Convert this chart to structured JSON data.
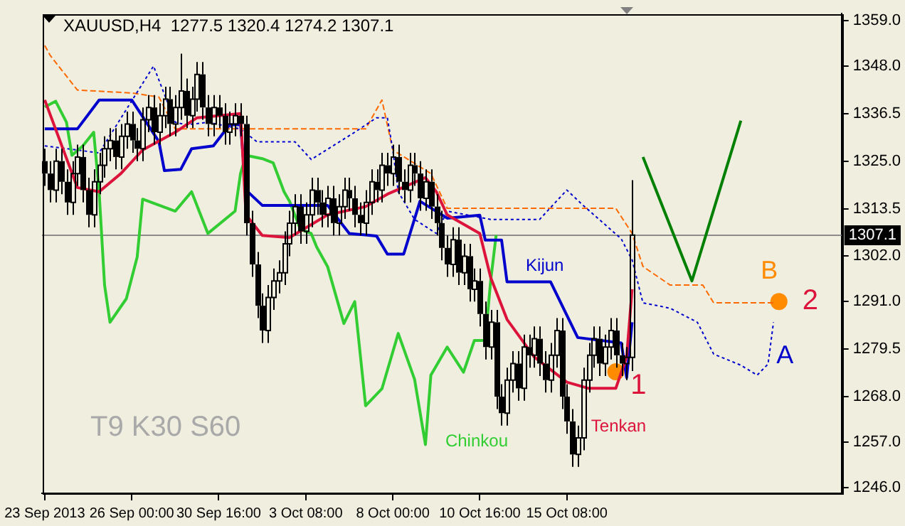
{
  "chart_data": {
    "type": "candlestick",
    "title": "XAUUSD,H4  1277.5 1320.4 1274.2 1307.1",
    "categories": [
      "23 Sep 2013",
      null,
      null,
      null,
      null,
      null,
      null,
      null,
      null,
      null,
      null,
      null,
      null,
      null,
      null,
      null,
      "26 Sep 00:00",
      null,
      null,
      null,
      null,
      null,
      null,
      null,
      null,
      null,
      null,
      null,
      null,
      null,
      null,
      null,
      "30 Sep 16:00",
      null,
      null,
      null,
      null,
      null,
      null,
      null,
      null,
      null,
      null,
      null,
      null,
      null,
      null,
      null,
      "3 Oct 08:00",
      null,
      null,
      null,
      null,
      null,
      null,
      null,
      null,
      null,
      null,
      null,
      null,
      null,
      null,
      null,
      "8 Oct 00:00",
      null,
      null,
      null,
      null,
      null,
      null,
      null,
      null,
      null,
      null,
      null,
      null,
      null,
      null,
      null,
      "10 Oct 16:00",
      null,
      null,
      null,
      null,
      null,
      null,
      null,
      null,
      null,
      null,
      null,
      null,
      null,
      null,
      null,
      "15 Oct 08:00",
      null,
      null,
      null,
      null,
      null,
      null,
      null,
      null,
      null,
      null,
      null,
      null,
      null,
      null,
      null,
      null,
      null,
      null,
      null,
      null,
      null,
      null,
      null,
      null,
      null,
      null,
      null,
      null,
      null,
      null,
      null,
      null,
      null,
      null,
      null,
      null,
      null,
      null,
      null,
      null,
      null,
      null,
      null,
      null,
      null,
      null,
      null,
      null,
      null,
      null
    ],
    "ohlc": [
      [
        1325,
        1328,
        1319,
        1322
      ],
      [
        1322,
        1325,
        1315,
        1318
      ],
      [
        1318,
        1328,
        1315,
        1325
      ],
      [
        1325,
        1328,
        1317,
        1320
      ],
      [
        1320,
        1323,
        1312,
        1315
      ],
      [
        1315,
        1325,
        1312,
        1322
      ],
      [
        1322,
        1329,
        1319,
        1326
      ],
      [
        1326,
        1329,
        1315,
        1318
      ],
      [
        1318,
        1321,
        1309,
        1312
      ],
      [
        1312,
        1323,
        1309,
        1320
      ],
      [
        1320,
        1327,
        1317,
        1324
      ],
      [
        1324,
        1331,
        1321,
        1328
      ],
      [
        1328,
        1333,
        1325,
        1330
      ],
      [
        1330,
        1333,
        1323,
        1326
      ],
      [
        1326,
        1334,
        1323,
        1331
      ],
      [
        1331,
        1337,
        1328,
        1334
      ],
      [
        1334,
        1337,
        1327,
        1330
      ],
      [
        1330,
        1333,
        1325,
        1328
      ],
      [
        1328,
        1338,
        1325,
        1335
      ],
      [
        1335,
        1341,
        1332,
        1338
      ],
      [
        1338,
        1341,
        1329,
        1332
      ],
      [
        1332,
        1339,
        1329,
        1336
      ],
      [
        1336,
        1343,
        1333,
        1340
      ],
      [
        1340,
        1343,
        1331,
        1334
      ],
      [
        1334,
        1341,
        1331,
        1338
      ],
      [
        1338,
        1351,
        1335,
        1342
      ],
      [
        1342,
        1345,
        1333,
        1336
      ],
      [
        1336,
        1343,
        1333,
        1340
      ],
      [
        1340,
        1349,
        1337,
        1346
      ],
      [
        1346,
        1349,
        1335,
        1338
      ],
      [
        1338,
        1341,
        1331,
        1334
      ],
      [
        1334,
        1341,
        1331,
        1338
      ],
      [
        1338,
        1341,
        1333,
        1336
      ],
      [
        1336,
        1339,
        1329,
        1332
      ],
      [
        1332,
        1337,
        1329,
        1334
      ],
      [
        1334,
        1339,
        1331,
        1336
      ],
      [
        1336,
        1339,
        1331,
        1334
      ],
      [
        1334,
        1336,
        1307,
        1310
      ],
      [
        1310,
        1313,
        1297,
        1300
      ],
      [
        1300,
        1303,
        1287,
        1290
      ],
      [
        1290,
        1293,
        1281,
        1284
      ],
      [
        1284,
        1295,
        1281,
        1292
      ],
      [
        1292,
        1299,
        1289,
        1296
      ],
      [
        1296,
        1301,
        1293,
        1298
      ],
      [
        1298,
        1308,
        1295,
        1305
      ],
      [
        1305,
        1313,
        1302,
        1310
      ],
      [
        1310,
        1317,
        1307,
        1314
      ],
      [
        1314,
        1317,
        1305,
        1308
      ],
      [
        1308,
        1315,
        1305,
        1312
      ],
      [
        1312,
        1321,
        1309,
        1318
      ],
      [
        1318,
        1321,
        1312,
        1315
      ],
      [
        1315,
        1318,
        1309,
        1312
      ],
      [
        1312,
        1319,
        1309,
        1316
      ],
      [
        1316,
        1319,
        1307,
        1310
      ],
      [
        1310,
        1317,
        1307,
        1314
      ],
      [
        1314,
        1321,
        1311,
        1318
      ],
      [
        1318,
        1321,
        1313,
        1316
      ],
      [
        1316,
        1319,
        1309,
        1312
      ],
      [
        1312,
        1315,
        1307,
        1310
      ],
      [
        1310,
        1318,
        1307,
        1315
      ],
      [
        1315,
        1323,
        1312,
        1320
      ],
      [
        1320,
        1323,
        1315,
        1318
      ],
      [
        1318,
        1327,
        1315,
        1324
      ],
      [
        1324,
        1327,
        1319,
        1322
      ],
      [
        1322,
        1329,
        1319,
        1326
      ],
      [
        1326,
        1329,
        1317,
        1320
      ],
      [
        1320,
        1323,
        1315,
        1318
      ],
      [
        1318,
        1327,
        1315,
        1324
      ],
      [
        1324,
        1327,
        1319,
        1322
      ],
      [
        1322,
        1325,
        1313,
        1316
      ],
      [
        1316,
        1323,
        1313,
        1320
      ],
      [
        1320,
        1323,
        1311,
        1314
      ],
      [
        1314,
        1317,
        1307,
        1310
      ],
      [
        1310,
        1313,
        1301,
        1304
      ],
      [
        1304,
        1307,
        1297,
        1300
      ],
      [
        1300,
        1309,
        1297,
        1306
      ],
      [
        1306,
        1309,
        1295,
        1298
      ],
      [
        1298,
        1305,
        1295,
        1302
      ],
      [
        1302,
        1305,
        1291,
        1294
      ],
      [
        1294,
        1299,
        1291,
        1296
      ],
      [
        1296,
        1299,
        1285,
        1288
      ],
      [
        1288,
        1291,
        1277,
        1280
      ],
      [
        1280,
        1289,
        1277,
        1286
      ],
      [
        1286,
        1289,
        1265,
        1268
      ],
      [
        1268,
        1271,
        1261,
        1264
      ],
      [
        1264,
        1275,
        1261,
        1272
      ],
      [
        1272,
        1279,
        1269,
        1276
      ],
      [
        1276,
        1279,
        1267,
        1270
      ],
      [
        1270,
        1283,
        1267,
        1280
      ],
      [
        1280,
        1283,
        1275,
        1278
      ],
      [
        1278,
        1285,
        1275,
        1282
      ],
      [
        1282,
        1285,
        1273,
        1276
      ],
      [
        1276,
        1279,
        1269,
        1272
      ],
      [
        1272,
        1281,
        1269,
        1278
      ],
      [
        1278,
        1287,
        1275,
        1284
      ],
      [
        1284,
        1287,
        1265,
        1268
      ],
      [
        1268,
        1271,
        1259,
        1262
      ],
      [
        1262,
        1265,
        1251,
        1254
      ],
      [
        1254,
        1261,
        1251,
        1258
      ],
      [
        1258,
        1275,
        1255,
        1272
      ],
      [
        1272,
        1281,
        1269,
        1278
      ],
      [
        1278,
        1285,
        1275,
        1282
      ],
      [
        1282,
        1285,
        1273,
        1276
      ],
      [
        1276,
        1283,
        1273,
        1280
      ],
      [
        1280,
        1287,
        1277,
        1284
      ],
      [
        1284,
        1287,
        1275,
        1278
      ],
      [
        1278,
        1281,
        1273,
        1276
      ],
      [
        1276,
        1280,
        1272,
        1277.5
      ],
      [
        1277.5,
        1320.4,
        1274.2,
        1307.1
      ],
      null,
      null,
      null,
      null,
      null,
      null,
      null,
      null,
      null,
      null,
      null,
      null,
      null,
      null,
      null,
      null,
      null,
      null,
      null,
      null,
      null,
      null,
      null,
      null,
      null,
      null,
      null,
      null,
      null,
      null,
      null,
      null,
      null,
      null,
      null,
      null,
      null,
      null
    ],
    "series": [
      {
        "name": "Tenkan",
        "type": "line",
        "color": "#dc143c",
        "line_style": "solid",
        "values": [
          1339.8,
          null,
          null,
          null,
          null,
          null,
          1318.6,
          null,
          null,
          null,
          1317.6,
          null,
          null,
          null,
          1322,
          null,
          null,
          null,
          1327.7,
          null,
          null,
          null,
          null,
          null,
          1332,
          null,
          null,
          null,
          1335.5,
          null,
          null,
          null,
          null,
          null,
          null,
          null,
          1336.5,
          1312,
          null,
          null,
          1307,
          null,
          null,
          null,
          null,
          1306.5,
          null,
          null,
          null,
          null,
          null,
          null,
          1312,
          null,
          null,
          null,
          null,
          null,
          null,
          1314,
          null,
          null,
          null,
          1317,
          null,
          null,
          null,
          null,
          null,
          null,
          1321,
          null,
          1317.6,
          null,
          1312,
          null,
          null,
          null,
          null,
          null,
          1307.5,
          null,
          1296.8,
          null,
          null,
          1286.7,
          null,
          null,
          null,
          null,
          1277.6,
          null,
          null,
          null,
          null,
          null,
          1271.5,
          null,
          null,
          null,
          1270,
          null,
          null,
          null,
          null,
          1270,
          null,
          1277.6,
          1294,
          null,
          null,
          null,
          null,
          null,
          null,
          null,
          null,
          null,
          null,
          null,
          null,
          null,
          null,
          null,
          null,
          null,
          null,
          null,
          null,
          null,
          null,
          null,
          null,
          null,
          null,
          null,
          null,
          null,
          null,
          null,
          null,
          null,
          null,
          null,
          null,
          null,
          null
        ]
      },
      {
        "name": "Kijun",
        "type": "line",
        "color": "#0000cd",
        "line_style": "solid",
        "values": [
          1332.8,
          null,
          null,
          null,
          null,
          null,
          1332.8,
          null,
          null,
          null,
          1339.8,
          null,
          null,
          null,
          null,
          null,
          1339.8,
          null,
          null,
          null,
          null,
          1329.7,
          1322.7,
          null,
          null,
          1323,
          null,
          1328,
          null,
          null,
          null,
          1328.7,
          null,
          null,
          1333.8,
          null,
          1333.8,
          1318,
          null,
          null,
          1314.3,
          null,
          null,
          null,
          null,
          null,
          null,
          null,
          null,
          null,
          null,
          null,
          1314.3,
          null,
          null,
          null,
          1307.5,
          null,
          null,
          null,
          null,
          1306.9,
          null,
          1302.5,
          null,
          null,
          1302.5,
          null,
          null,
          1315.3,
          null,
          null,
          null,
          null,
          1311.2,
          null,
          null,
          null,
          null,
          null,
          1311.9,
          1305.9,
          null,
          null,
          1305.9,
          1295.8,
          null,
          null,
          null,
          null,
          null,
          null,
          null,
          1295.8,
          null,
          null,
          null,
          null,
          1282.3,
          null,
          null,
          null,
          null,
          null,
          null,
          null,
          1281,
          1272.6,
          1286,
          null,
          null,
          null,
          null,
          null,
          null,
          null,
          null,
          null,
          null,
          null,
          null,
          null,
          null,
          null,
          null,
          null,
          null,
          null,
          null,
          null,
          null,
          null,
          null,
          null,
          null,
          null,
          null,
          null,
          null,
          null,
          null,
          null,
          null,
          null,
          null,
          null,
          null
        ]
      },
      {
        "name": "Chinkou",
        "type": "line",
        "color": "#32cd32",
        "line_style": "solid",
        "values": [
          1338.1,
          null,
          1339.5,
          null,
          1334.4,
          1326.4,
          null,
          1328.7,
          null,
          1332,
          1317.6,
          1295,
          1286,
          null,
          null,
          1291.7,
          null,
          1301.8,
          1315.8,
          null,
          null,
          null,
          null,
          null,
          1312.9,
          null,
          null,
          1317.6,
          null,
          null,
          1307.5,
          null,
          null,
          null,
          null,
          1312.9,
          1322,
          1326.4,
          null,
          null,
          1325.6,
          null,
          1324.6,
          null,
          1317.6,
          1315.3,
          null,
          1308.5,
          null,
          1307.5,
          1304.2,
          null,
          1299.5,
          null,
          null,
          1285.7,
          null,
          1291,
          null,
          1265.8,
          null,
          null,
          1269.9,
          null,
          null,
          1283.3,
          null,
          null,
          1272.2,
          null,
          1256.4,
          1273.2,
          null,
          null,
          1280,
          null,
          null,
          1273.9,
          null,
          1281.6,
          null,
          1281.6,
          1296.1,
          1307.1,
          null,
          null,
          null,
          null,
          null,
          null,
          null,
          null,
          null,
          null,
          null,
          null,
          null,
          null,
          null,
          null,
          null,
          null,
          null,
          null,
          null,
          null,
          null,
          null,
          null,
          null,
          null,
          null,
          null,
          null,
          null,
          null,
          null,
          null,
          null,
          null,
          null,
          null,
          null,
          null,
          null,
          null,
          null,
          null,
          null,
          null,
          null,
          null,
          null,
          null,
          null,
          null,
          null,
          null,
          null,
          null,
          null,
          null,
          null,
          null,
          null,
          null,
          null
        ]
      },
      {
        "name": "A",
        "type": "line",
        "color": "#0000cd",
        "line_style": "dotted",
        "values": [
          1328.7,
          null,
          null,
          null,
          null,
          null,
          null,
          null,
          null,
          null,
          1327,
          null,
          null,
          null,
          null,
          null,
          null,
          null,
          null,
          null,
          1348,
          null,
          1341.2,
          null,
          1334.4,
          null,
          1333.8,
          null,
          null,
          null,
          1334.4,
          null,
          null,
          null,
          null,
          null,
          1332.8,
          null,
          null,
          1329.7,
          null,
          null,
          null,
          null,
          null,
          null,
          1329.7,
          null,
          null,
          1325.4,
          null,
          null,
          null,
          1328.7,
          null,
          null,
          null,
          1332,
          null,
          null,
          null,
          1335.5,
          null,
          1335.5,
          1327.7,
          1317.6,
          null,
          null,
          1310.9,
          null,
          null,
          null,
          1307.5,
          null,
          1312.9,
          null,
          null,
          null,
          null,
          null,
          null,
          null,
          1310.9,
          null,
          null,
          null,
          null,
          null,
          null,
          null,
          null,
          1310.9,
          null,
          null,
          null,
          null,
          1318,
          null,
          null,
          1314.3,
          null,
          null,
          null,
          null,
          null,
          null,
          1306.2,
          null,
          1301.1,
          null,
          1290.7,
          null,
          null,
          null,
          null,
          1289.4,
          null,
          null,
          null,
          null,
          1286,
          null,
          null,
          1278.3,
          null,
          null,
          null,
          null,
          1275.6,
          null,
          null,
          1273.2,
          null,
          1275.9,
          1286,
          null,
          null,
          null,
          null,
          null,
          null,
          null,
          null,
          null,
          null,
          null,
          null
        ]
      },
      {
        "name": "B",
        "type": "line",
        "color": "#ff6a00",
        "line_style": "dashed",
        "values": [
          1353,
          1350.6,
          null,
          null,
          null,
          null,
          1342.2,
          null,
          null,
          null,
          null,
          null,
          null,
          null,
          null,
          null,
          1341.5,
          null,
          null,
          null,
          null,
          1340.5,
          null,
          null,
          1332.8,
          null,
          null,
          null,
          null,
          null,
          null,
          null,
          null,
          null,
          null,
          null,
          null,
          1332.8,
          null,
          null,
          null,
          null,
          null,
          null,
          null,
          null,
          null,
          null,
          null,
          null,
          null,
          null,
          null,
          null,
          null,
          null,
          null,
          null,
          null,
          1332.8,
          null,
          null,
          1339.8,
          null,
          1327.7,
          null,
          null,
          null,
          null,
          null,
          null,
          1322,
          null,
          null,
          1313.6,
          null,
          null,
          null,
          null,
          null,
          null,
          null,
          null,
          null,
          null,
          null,
          null,
          null,
          null,
          null,
          null,
          null,
          null,
          null,
          null,
          null,
          null,
          null,
          null,
          null,
          null,
          null,
          null,
          null,
          null,
          1313.6,
          null,
          null,
          1307.5,
          null,
          1299.5,
          null,
          null,
          null,
          null,
          1295,
          null,
          null,
          null,
          null,
          null,
          1295,
          null,
          1290.7,
          null,
          null,
          null,
          null,
          null,
          null,
          null,
          null,
          null,
          null,
          1290.7,
          null,
          null,
          null,
          null,
          null,
          null,
          null,
          null,
          null,
          null,
          null,
          null
        ]
      },
      {
        "type": "line",
        "color": "#008000",
        "line_style": "solid",
        "values": [
          null,
          null,
          null,
          null,
          null,
          null,
          null,
          null,
          null,
          null,
          null,
          null,
          null,
          null,
          null,
          null,
          null,
          null,
          null,
          null,
          null,
          null,
          null,
          null,
          null,
          null,
          null,
          null,
          null,
          null,
          null,
          null,
          null,
          null,
          null,
          null,
          null,
          null,
          null,
          null,
          null,
          null,
          null,
          null,
          null,
          null,
          null,
          null,
          null,
          null,
          null,
          null,
          null,
          null,
          null,
          null,
          null,
          null,
          null,
          null,
          null,
          null,
          null,
          null,
          null,
          null,
          null,
          null,
          null,
          null,
          null,
          null,
          null,
          null,
          null,
          null,
          null,
          null,
          null,
          null,
          null,
          null,
          null,
          null,
          null,
          null,
          null,
          null,
          null,
          null,
          null,
          null,
          null,
          null,
          null,
          null,
          null,
          null,
          null,
          null,
          null,
          null,
          null,
          null,
          null,
          null,
          null,
          null,
          null,
          null,
          1326,
          null,
          null,
          null,
          null,
          null,
          null,
          null,
          null,
          1296,
          null,
          null,
          null,
          null,
          null,
          null,
          null,
          null,
          1334.8,
          null,
          null,
          null,
          null,
          null,
          null,
          null,
          null,
          null,
          null,
          null,
          null,
          null,
          null,
          null,
          null,
          null,
          null
        ]
      },
      {
        "type": "scatter",
        "color": "#ff8c00",
        "values": [
          null,
          null,
          null,
          null,
          null,
          null,
          null,
          null,
          null,
          null,
          null,
          null,
          null,
          null,
          null,
          null,
          null,
          null,
          null,
          null,
          null,
          null,
          null,
          null,
          null,
          null,
          null,
          null,
          null,
          null,
          null,
          null,
          null,
          null,
          null,
          null,
          null,
          null,
          null,
          null,
          null,
          null,
          null,
          null,
          null,
          null,
          null,
          null,
          null,
          null,
          null,
          null,
          null,
          null,
          null,
          null,
          null,
          null,
          null,
          null,
          null,
          null,
          null,
          null,
          null,
          null,
          null,
          null,
          null,
          null,
          null,
          null,
          null,
          null,
          null,
          null,
          null,
          null,
          null,
          null,
          null,
          null,
          null,
          null,
          null,
          null,
          null,
          null,
          null,
          null,
          null,
          null,
          null,
          null,
          null,
          null,
          null,
          null,
          null,
          null,
          null,
          null,
          null,
          null,
          null,
          1274,
          null,
          null,
          null,
          null,
          null,
          null,
          null,
          null,
          null,
          null,
          null,
          null,
          null,
          null,
          null,
          null,
          null,
          null,
          null,
          null,
          null,
          null,
          null,
          null,
          null,
          null,
          null,
          null,
          null,
          1291,
          null,
          null,
          null,
          null,
          null,
          null,
          null,
          null,
          null,
          null,
          null
        ]
      }
    ],
    "annotations": [
      "1",
      "2",
      "T9 K30 S60"
    ],
    "ref_lines": [
      {
        "axis": "y",
        "value": 1307.1,
        "label": "1307.1",
        "color": "#8c8c8c"
      }
    ],
    "ylim": [
      1244.6,
      1360.7
    ],
    "yticks": [
      {
        "value": 1359,
        "label": "1359.0"
      },
      {
        "value": 1348,
        "label": "1348.0"
      },
      {
        "value": 1336.5,
        "label": "1336.5"
      },
      {
        "value": 1325,
        "label": "1325.0"
      },
      {
        "value": 1313.5,
        "label": "1313.5"
      },
      {
        "value": 1302,
        "label": "1302.0"
      },
      {
        "value": 1291,
        "label": "1291.0"
      },
      {
        "value": 1279.5,
        "label": "1279.5"
      },
      {
        "value": 1268,
        "label": "1268.0"
      },
      {
        "value": 1257,
        "label": "1257.0"
      },
      {
        "value": 1246,
        "label": "1246.0"
      }
    ],
    "legend": false
  }
}
